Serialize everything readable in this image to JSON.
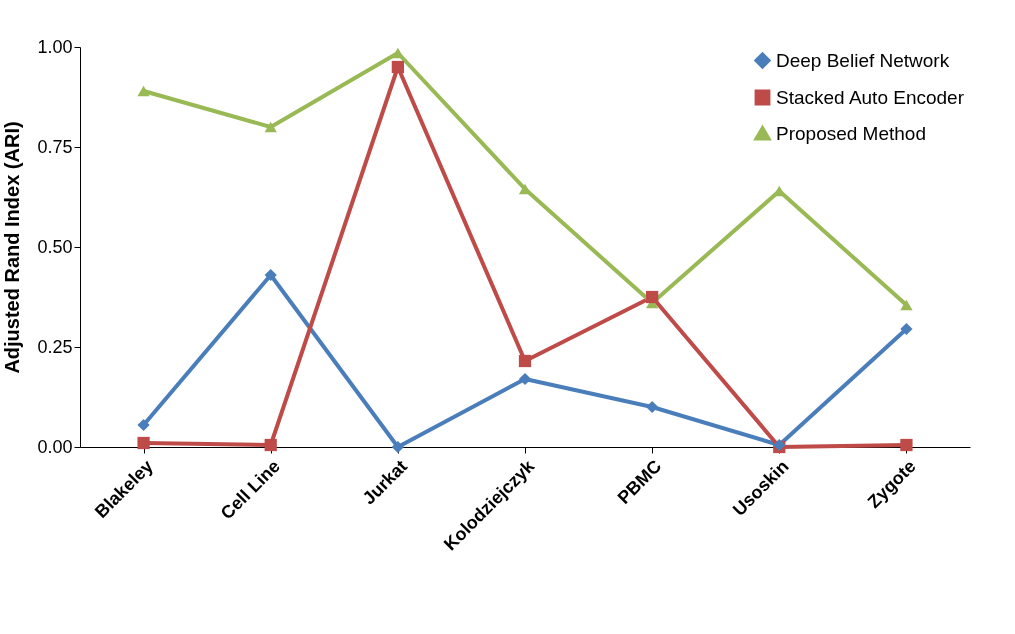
{
  "chart_data": {
    "type": "line",
    "ylabel": "Adjusted Rand Index (ARI)",
    "categories": [
      "Blakeley",
      "Cell Line",
      "Jurkat",
      "Kolodziejczyk",
      "PBMC",
      "Usoskin",
      "Zygote"
    ],
    "series": [
      {
        "name": "Deep Belief Network",
        "color": "#4a7ebb",
        "marker": "diamond",
        "values": [
          0.055,
          0.43,
          0,
          0.17,
          0.1,
          0.005,
          0.295
        ]
      },
      {
        "name": "Stacked Auto Encoder",
        "color": "#be4b48",
        "marker": "square",
        "values": [
          0.01,
          0.005,
          0.95,
          0.215,
          0.375,
          0,
          0.005
        ]
      },
      {
        "name": "Proposed Method",
        "color": "#98b954",
        "marker": "triangle",
        "values": [
          0.89,
          0.8,
          0.985,
          0.645,
          0.36,
          0.64,
          0.355
        ]
      }
    ],
    "ylim": [
      0,
      1
    ],
    "yticks": [
      {
        "value": 0,
        "label": "0.00"
      },
      {
        "value": 0.25,
        "label": "0.25"
      },
      {
        "value": 0.5,
        "label": "0.50"
      },
      {
        "value": 0.75,
        "label": "0.75"
      },
      {
        "value": 1,
        "label": "1.00"
      }
    ],
    "grid": false,
    "legend": "top right",
    "line_style": "solid"
  }
}
